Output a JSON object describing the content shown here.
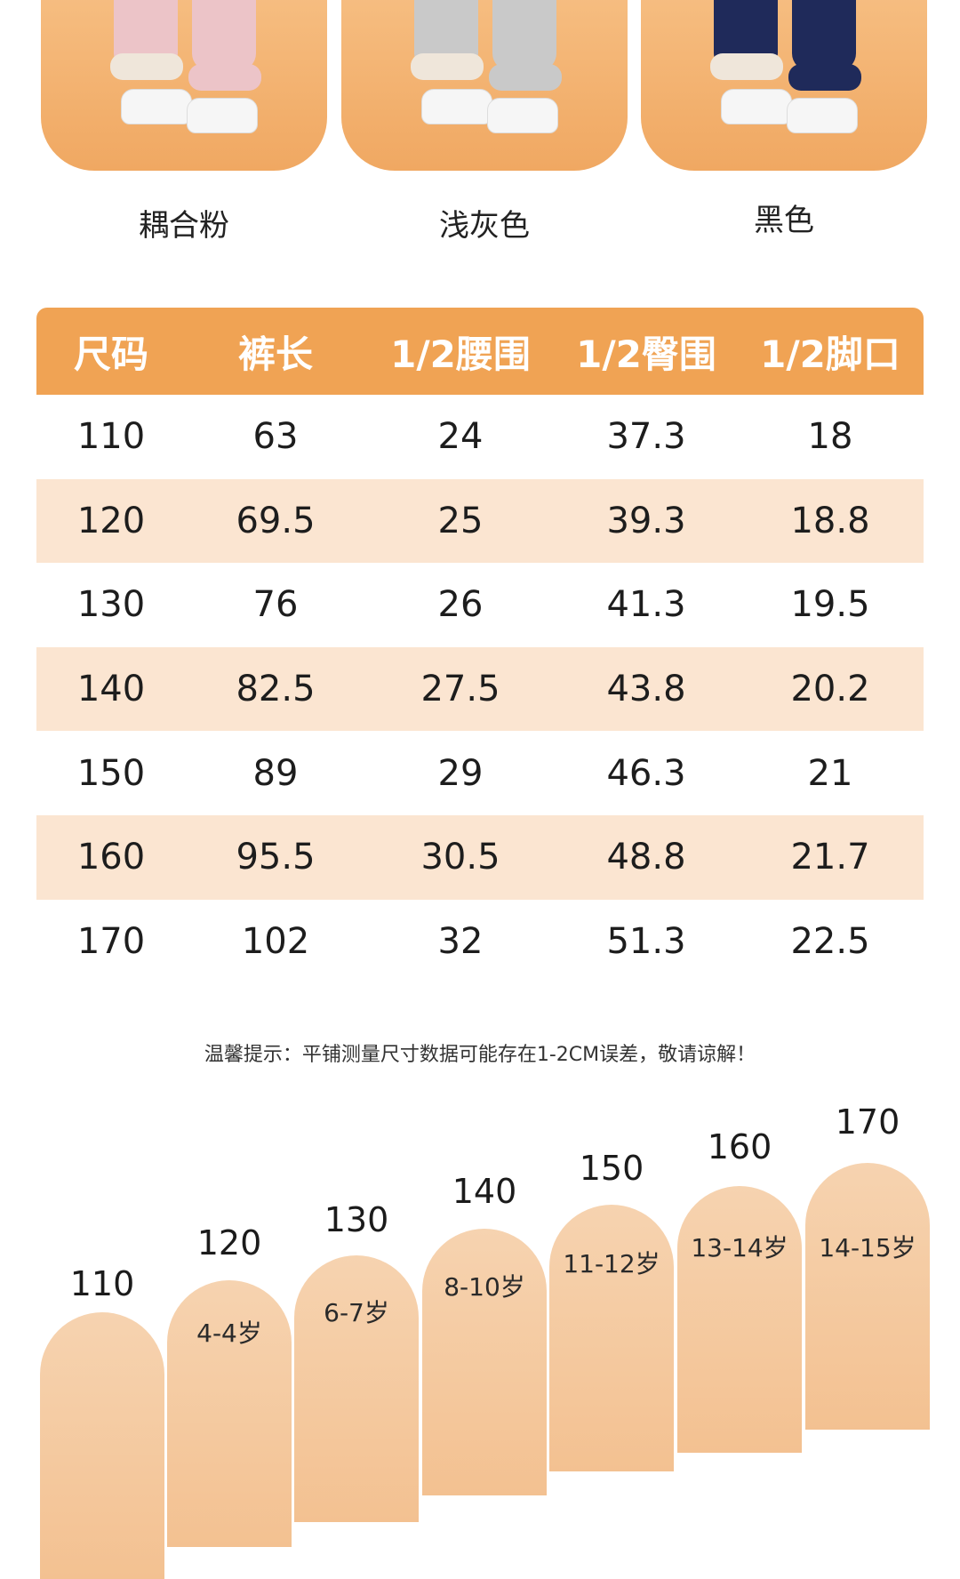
{
  "colors": {
    "accent": "#f0a354",
    "row_alt": "#fbe5d1",
    "card_top": "#f7c186",
    "card_bottom": "#f0a862",
    "step": "#f3c191"
  },
  "products": [
    {
      "label": "耦合粉",
      "pant_color": "#ecc4c8",
      "icon": "pink-pants-image"
    },
    {
      "label": "浅灰色",
      "pant_color": "#c9c9c9",
      "icon": "gray-pants-image"
    },
    {
      "label": "黑色",
      "pant_color": "#1f2a5a",
      "icon": "navy-pants-image"
    }
  ],
  "size_table": {
    "headers": [
      "尺码",
      "裤长",
      "1/2腰围",
      "1/2臀围",
      "1/2脚口"
    ],
    "rows": [
      [
        "110",
        "63",
        "24",
        "37.3",
        "18"
      ],
      [
        "120",
        "69.5",
        "25",
        "39.3",
        "18.8"
      ],
      [
        "130",
        "76",
        "26",
        "41.3",
        "19.5"
      ],
      [
        "140",
        "82.5",
        "27.5",
        "43.8",
        "20.2"
      ],
      [
        "150",
        "89",
        "29",
        "46.3",
        "21"
      ],
      [
        "160",
        "95.5",
        "30.5",
        "48.8",
        "21.7"
      ],
      [
        "170",
        "102",
        "32",
        "51.3",
        "22.5"
      ]
    ]
  },
  "note": "温馨提示：平铺测量尺寸数据可能存在1-2CM误差，敬请谅解！",
  "size_steps": [
    {
      "size": "110",
      "age": ""
    },
    {
      "size": "120",
      "age": "4-4岁"
    },
    {
      "size": "130",
      "age": "6-7岁"
    },
    {
      "size": "140",
      "age": "8-10岁"
    },
    {
      "size": "150",
      "age": "11-12岁"
    },
    {
      "size": "160",
      "age": "13-14岁"
    },
    {
      "size": "170",
      "age": "14-15岁"
    }
  ]
}
